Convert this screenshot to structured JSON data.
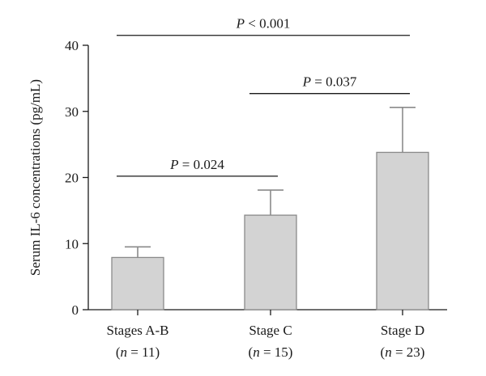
{
  "chart_data": {
    "type": "bar",
    "title": "",
    "ylabel": "Serum IL-6 concentrations (pg/mL)",
    "xlabel": "",
    "ylim": [
      0,
      40
    ],
    "yticks": [
      0,
      10,
      20,
      30,
      40
    ],
    "grid": false,
    "categories": [
      {
        "name": "Stages A-B",
        "n_prefix": "(",
        "n_italic": "n",
        "n_suffix": " = 11)"
      },
      {
        "name": "Stage C",
        "n_prefix": "(",
        "n_italic": "n",
        "n_suffix": " = 15)"
      },
      {
        "name": "Stage D",
        "n_prefix": "(",
        "n_italic": "n",
        "n_suffix": " = 23)"
      }
    ],
    "values": [
      7.9,
      14.3,
      23.8
    ],
    "error_upper": [
      9.5,
      18.1,
      30.6
    ],
    "bar_color": "#d3d3d3",
    "bar_edge_color": "#8a8a8a",
    "significance": [
      {
        "from": 0,
        "to": 1,
        "p_italic": "P",
        "p_text": " = 0.024",
        "level": 20.2
      },
      {
        "from": 1,
        "to": 2,
        "p_italic": "P",
        "p_text": " = 0.037",
        "level": 32.7
      },
      {
        "from": 0,
        "to": 2,
        "p_italic": "P",
        "p_text": " < 0.001",
        "level": 41.5
      }
    ]
  }
}
